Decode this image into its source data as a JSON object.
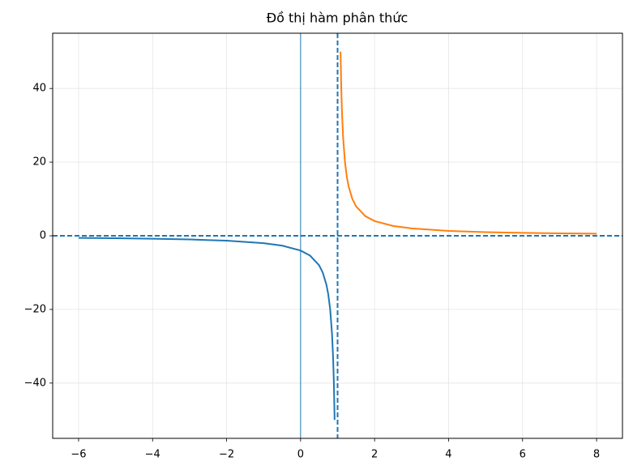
{
  "chart_data": {
    "type": "line",
    "title": "Đồ thị hàm phân thức",
    "series": [
      {
        "color": "#1f77b4",
        "x": [
          -6,
          -5,
          -4,
          -3,
          -2,
          -1,
          -0.5,
          0,
          0.25,
          0.5,
          0.6,
          0.7,
          0.75,
          0.8,
          0.85,
          0.88,
          0.9,
          0.92
        ],
        "values": [
          -0.571,
          -0.667,
          -0.8,
          -1,
          -1.333,
          -2,
          -2.667,
          -4,
          -5.333,
          -8,
          -10,
          -13.333,
          -16,
          -20,
          -26.667,
          -33.333,
          -40,
          -50
        ]
      },
      {
        "color": "#ff7f0e",
        "x": [
          1.08,
          1.1,
          1.12,
          1.15,
          1.2,
          1.25,
          1.3,
          1.4,
          1.5,
          1.75,
          2,
          2.5,
          3,
          4,
          5,
          6,
          7,
          8
        ],
        "values": [
          50,
          40,
          33.333,
          26.667,
          20,
          16,
          13.333,
          10,
          8,
          5.333,
          4,
          2.667,
          2,
          1.333,
          1,
          0.8,
          0.667,
          0.571
        ]
      }
    ],
    "reference_lines": [
      {
        "axis": "x",
        "value": 0,
        "style": "solid",
        "color": "#1f77b4"
      },
      {
        "axis": "x",
        "value": 1,
        "style": "dashed",
        "color": "#1f77b4"
      },
      {
        "axis": "y",
        "value": 0,
        "style": "dashed",
        "color": "#1f77b4"
      }
    ],
    "xlim": [
      -6.7,
      8.7
    ],
    "ylim": [
      -55,
      55
    ],
    "xticks": [
      {
        "value": -6,
        "label": "−6"
      },
      {
        "value": -4,
        "label": "−4"
      },
      {
        "value": -2,
        "label": "−2"
      },
      0,
      2,
      4,
      6,
      8
    ],
    "yticks": [
      {
        "value": -40,
        "label": "−40"
      },
      {
        "value": -20,
        "label": "−20"
      },
      0,
      20,
      40
    ],
    "grid": true
  }
}
